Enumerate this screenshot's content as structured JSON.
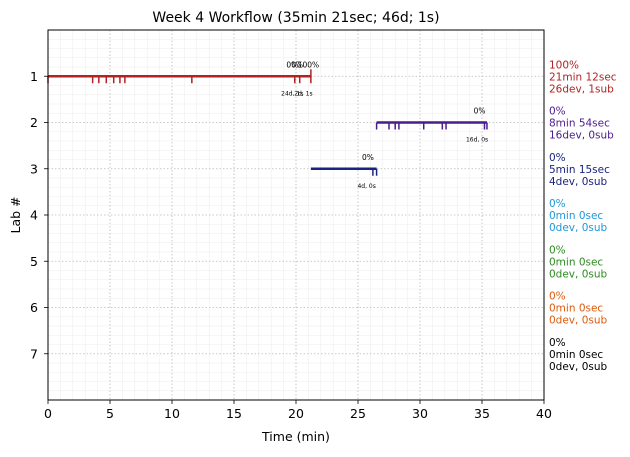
{
  "chart_data": {
    "type": "timeline",
    "title": "Week 4 Workflow (35min 21sec; 46d; 1s)",
    "xlabel": "Time (min)",
    "ylabel": "Lab #",
    "xlim": [
      0,
      40
    ],
    "ylim": [
      8,
      0
    ],
    "x_ticks": [
      0,
      5,
      10,
      15,
      20,
      25,
      30,
      35,
      40
    ],
    "y_ticks": [
      1,
      2,
      3,
      4,
      5,
      6,
      7
    ],
    "grid": true,
    "labs": [
      {
        "lab": 1,
        "color": "#b22222",
        "start": 0.0,
        "end": 21.2,
        "commits": [
          0.0,
          3.6,
          4.1,
          4.7,
          5.3,
          5.8,
          6.2,
          11.6,
          19.9,
          20.3
        ],
        "end_marker": 21.2,
        "pct_labels": [
          {
            "x": 19.7,
            "text": "0%"
          },
          {
            "x": 20.1,
            "text": "0%"
          },
          {
            "x": 21.0,
            "text": "100%"
          }
        ],
        "sub_labels": [
          {
            "x": 19.7,
            "text": "24d, 1s"
          },
          {
            "x": 20.6,
            "text": "2d, 1s"
          }
        ],
        "summary": [
          "100%",
          "21min 12sec",
          "26dev, 1sub"
        ]
      },
      {
        "lab": 2,
        "color": "#4b1c8c",
        "start": 26.5,
        "end": 35.4,
        "commits": [
          26.5,
          27.5,
          28.0,
          28.3,
          30.3,
          31.8,
          32.1,
          35.2,
          35.4
        ],
        "pct_labels": [
          {
            "x": 34.8,
            "text": "0%"
          }
        ],
        "sub_labels": [
          {
            "x": 34.6,
            "text": "16d, 0s"
          }
        ],
        "summary": [
          "0%",
          "8min 54sec",
          "16dev, 0sub"
        ]
      },
      {
        "lab": 3,
        "color": "#1a237e",
        "start": 21.2,
        "end": 26.5,
        "commits": [
          26.2,
          26.5
        ],
        "pct_labels": [
          {
            "x": 25.8,
            "text": "0%"
          }
        ],
        "sub_labels": [
          {
            "x": 25.7,
            "text": "4d, 0s"
          }
        ],
        "summary": [
          "0%",
          "5min 15sec",
          "4dev, 0sub"
        ]
      },
      {
        "lab": 4,
        "color": "#1f97d8",
        "summary": [
          "0%",
          "0min 0sec",
          "0dev, 0sub"
        ]
      },
      {
        "lab": 5,
        "color": "#2e8b22",
        "summary": [
          "0%",
          "0min 0sec",
          "0dev, 0sub"
        ]
      },
      {
        "lab": 6,
        "color": "#e05a0c",
        "summary": [
          "0%",
          "0min 0sec",
          "0dev, 0sub"
        ]
      },
      {
        "lab": 7,
        "color": "#000000",
        "summary": [
          "0%",
          "0min 0sec",
          "0dev, 0sub"
        ]
      }
    ]
  }
}
